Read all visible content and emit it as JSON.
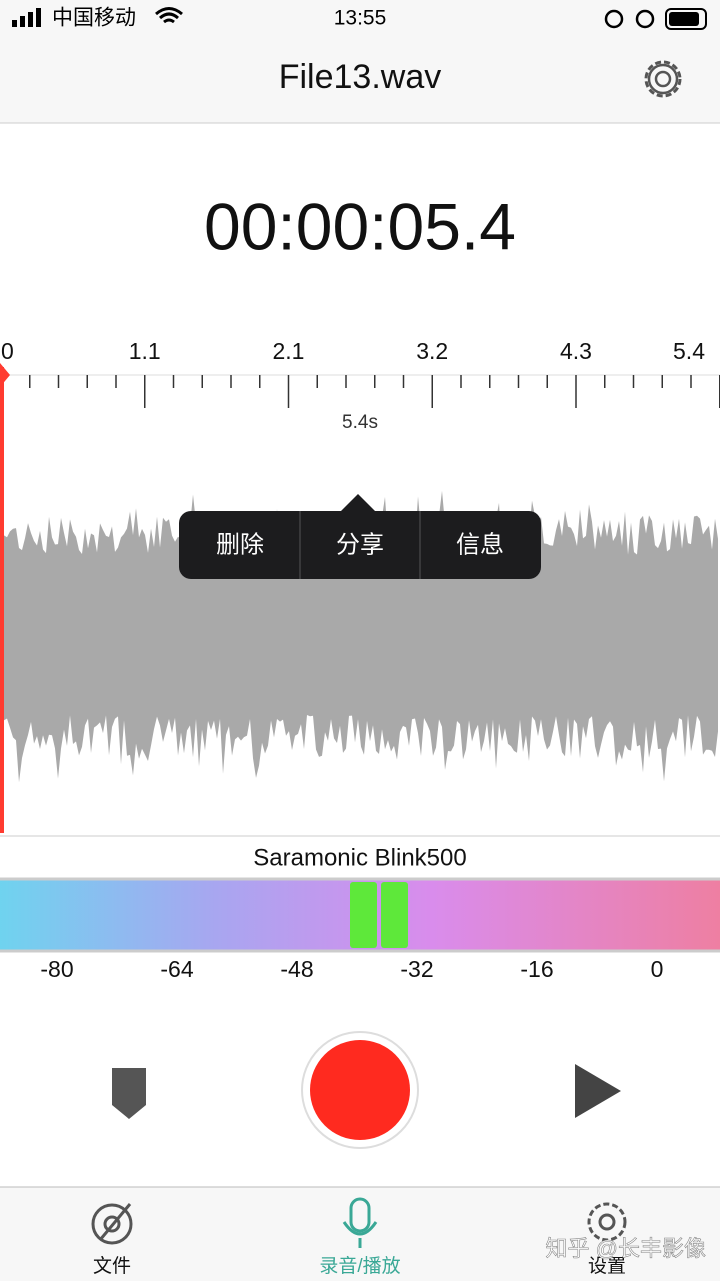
{
  "status_bar": {
    "carrier": "中国移动",
    "time": "13:55"
  },
  "header": {
    "title": "File13.wav"
  },
  "timer": "00:00:05.4",
  "ruler": {
    "labels": [
      "0",
      "1.1",
      "2.1",
      "3.2",
      "4.3",
      "5.4"
    ],
    "duration": "5.4s"
  },
  "context_menu": [
    "删除",
    "分享",
    "信息"
  ],
  "input_device": "Saramonic Blink500",
  "meter": {
    "labels": [
      "-80",
      "-64",
      "-48",
      "-32",
      "-16",
      "0"
    ]
  },
  "tabs": [
    "文件",
    "录音/播放",
    "设置"
  ],
  "watermark": "知乎 @长丰影像"
}
